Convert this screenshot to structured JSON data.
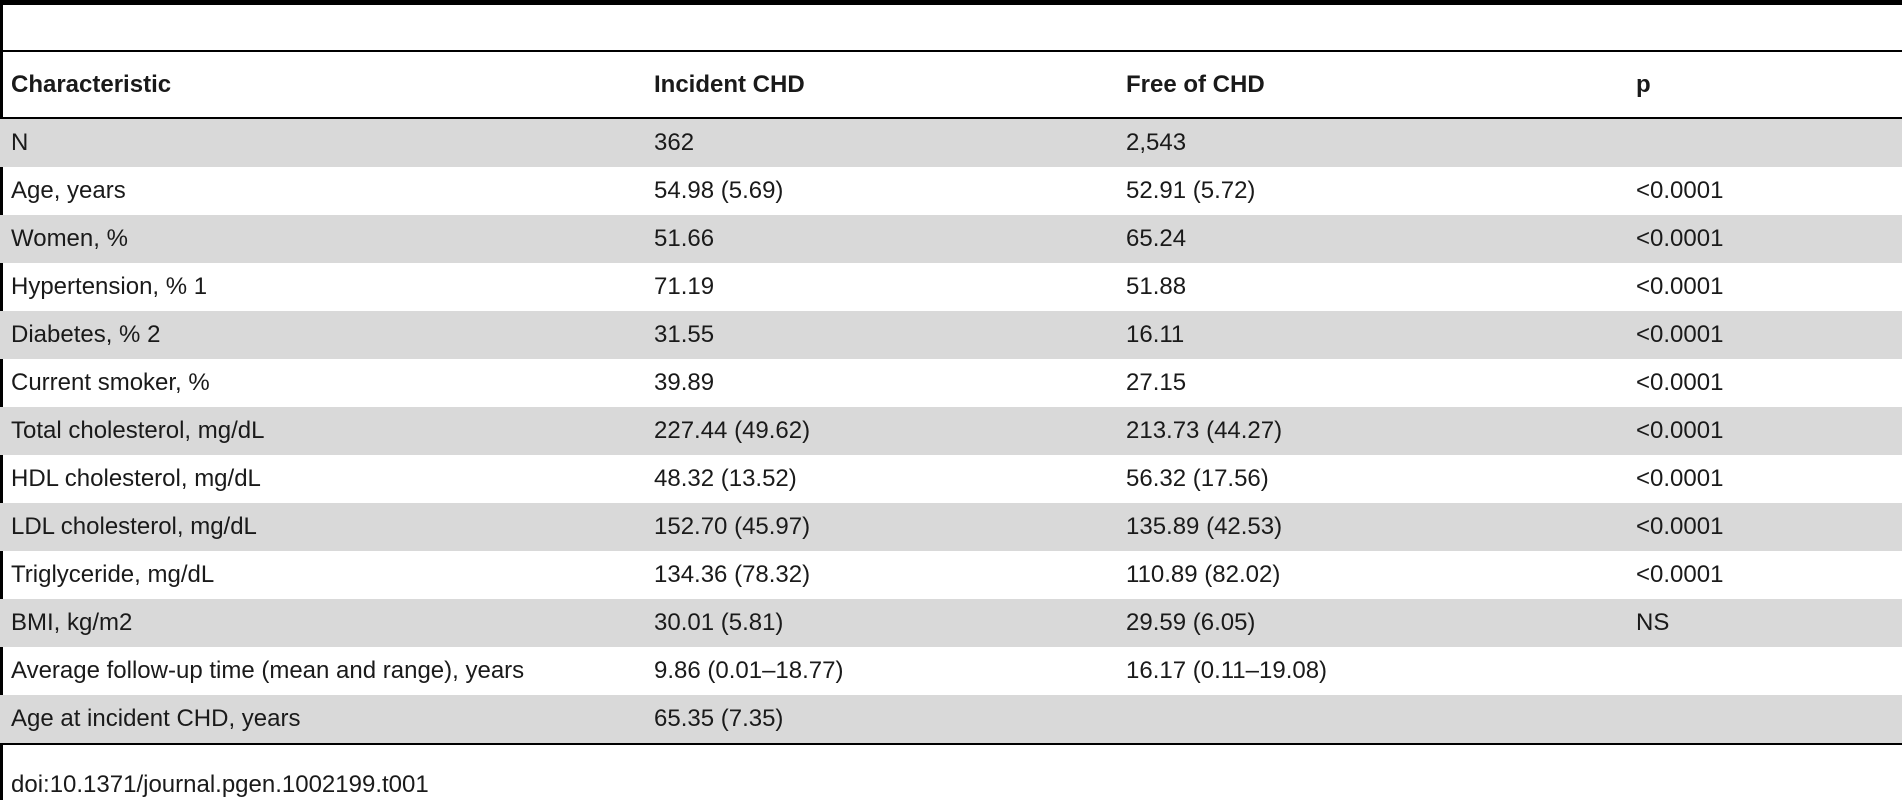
{
  "table": {
    "headers": [
      "Characteristic",
      "Incident CHD",
      "Free of CHD",
      "p"
    ],
    "rows": [
      [
        "N",
        "362",
        "2,543",
        ""
      ],
      [
        "Age, years",
        "54.98 (5.69)",
        "52.91 (5.72)",
        "<0.0001"
      ],
      [
        "Women, %",
        "51.66",
        "65.24",
        "<0.0001"
      ],
      [
        "Hypertension, % 1",
        "71.19",
        "51.88",
        "<0.0001"
      ],
      [
        "Diabetes, % 2",
        "31.55",
        "16.11",
        "<0.0001"
      ],
      [
        "Current smoker, %",
        "39.89",
        "27.15",
        "<0.0001"
      ],
      [
        "Total cholesterol, mg/dL",
        "227.44 (49.62)",
        "213.73 (44.27)",
        "<0.0001"
      ],
      [
        "HDL cholesterol, mg/dL",
        "48.32 (13.52)",
        "56.32 (17.56)",
        "<0.0001"
      ],
      [
        "LDL cholesterol, mg/dL",
        "152.70 (45.97)",
        "135.89 (42.53)",
        "<0.0001"
      ],
      [
        "Triglyceride, mg/dL",
        "134.36 (78.32)",
        "110.89 (82.02)",
        "<0.0001"
      ],
      [
        "BMI, kg/m2",
        "30.01 (5.81)",
        "29.59 (6.05)",
        "NS"
      ],
      [
        "Average follow-up time (mean and range), years",
        "9.86 (0.01–18.77)",
        "16.17 (0.11–19.08)",
        ""
      ],
      [
        "Age at incident CHD, years",
        "65.35 (7.35)",
        "",
        ""
      ]
    ]
  },
  "doi": "doi:10.1371/journal.pgen.1002199.t001"
}
